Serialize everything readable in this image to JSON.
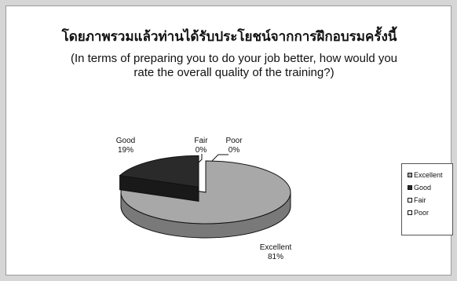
{
  "chart_data": {
    "type": "pie",
    "style": "3d-exploded",
    "title": "โดยภาพรวมแล้วท่านได้รับประโยชน์จากการฝึกอบรมครั้งนี้",
    "subtitle": "(In terms of preparing you to do your job better, how would you rate the overall quality of the training?)",
    "categories": [
      "Excellent",
      "Good",
      "Fair",
      "Poor"
    ],
    "values": [
      81,
      19,
      0,
      0
    ],
    "value_labels": [
      "81%",
      "19%",
      "0%",
      "0%"
    ],
    "colors": [
      "#a8a8a8",
      "#2a2a2a",
      "#ffffff",
      "#ffffff"
    ],
    "legend": {
      "position": "right",
      "items": [
        "Excellent",
        "Good",
        "Fair",
        "Poor"
      ]
    }
  }
}
